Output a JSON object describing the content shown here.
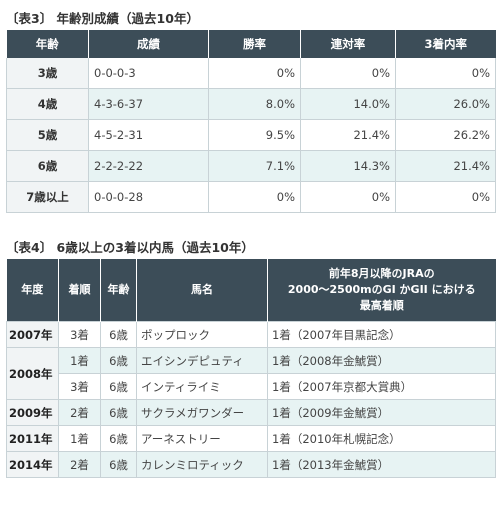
{
  "table3": {
    "caption": "〔表3〕 年齢別成績（過去10年）",
    "headers": [
      "年齢",
      "成績",
      "勝率",
      "連対率",
      "3着内率"
    ],
    "rows": [
      {
        "age": "3歳",
        "record": "0-0-0-3",
        "win": "0%",
        "top2": "0%",
        "top3": "0%"
      },
      {
        "age": "4歳",
        "record": "4-3-6-37",
        "win": "8.0%",
        "top2": "14.0%",
        "top3": "26.0%"
      },
      {
        "age": "5歳",
        "record": "4-5-2-31",
        "win": "9.5%",
        "top2": "21.4%",
        "top3": "26.2%"
      },
      {
        "age": "6歳",
        "record": "2-2-2-22",
        "win": "7.1%",
        "top2": "14.3%",
        "top3": "21.4%"
      },
      {
        "age": "7歳以上",
        "record": "0-0-0-28",
        "win": "0%",
        "top2": "0%",
        "top3": "0%"
      }
    ]
  },
  "table4": {
    "caption": "〔表4〕 6歳以上の3着以内馬（過去10年）",
    "headers": {
      "year": "年度",
      "place": "着順",
      "age": "年齢",
      "horse": "馬名",
      "best_line1": "前年8月以降のJRAの",
      "best_line2": "2000～2500mのGI かGII における",
      "best_line3": "最高着順"
    },
    "years": [
      "2007年",
      "2008年",
      "2009年",
      "2011年",
      "2014年"
    ],
    "rows": [
      {
        "place": "3着",
        "age": "6歳",
        "horse": "ポップロック",
        "best": "1着（2007年目黒記念）"
      },
      {
        "place": "1着",
        "age": "6歳",
        "horse": "エイシンデピュティ",
        "best": "1着（2008年金鯱賞）"
      },
      {
        "place": "3着",
        "age": "6歳",
        "horse": "インティライミ",
        "best": "1着（2007年京都大賞典）"
      },
      {
        "place": "2着",
        "age": "6歳",
        "horse": "サクラメガワンダー",
        "best": "1着（2009年金鯱賞）"
      },
      {
        "place": "1着",
        "age": "6歳",
        "horse": "アーネストリー",
        "best": "1着（2010年札幌記念）"
      },
      {
        "place": "2着",
        "age": "6歳",
        "horse": "カレンミロティック",
        "best": "1着（2013年金鯱賞）"
      }
    ]
  }
}
